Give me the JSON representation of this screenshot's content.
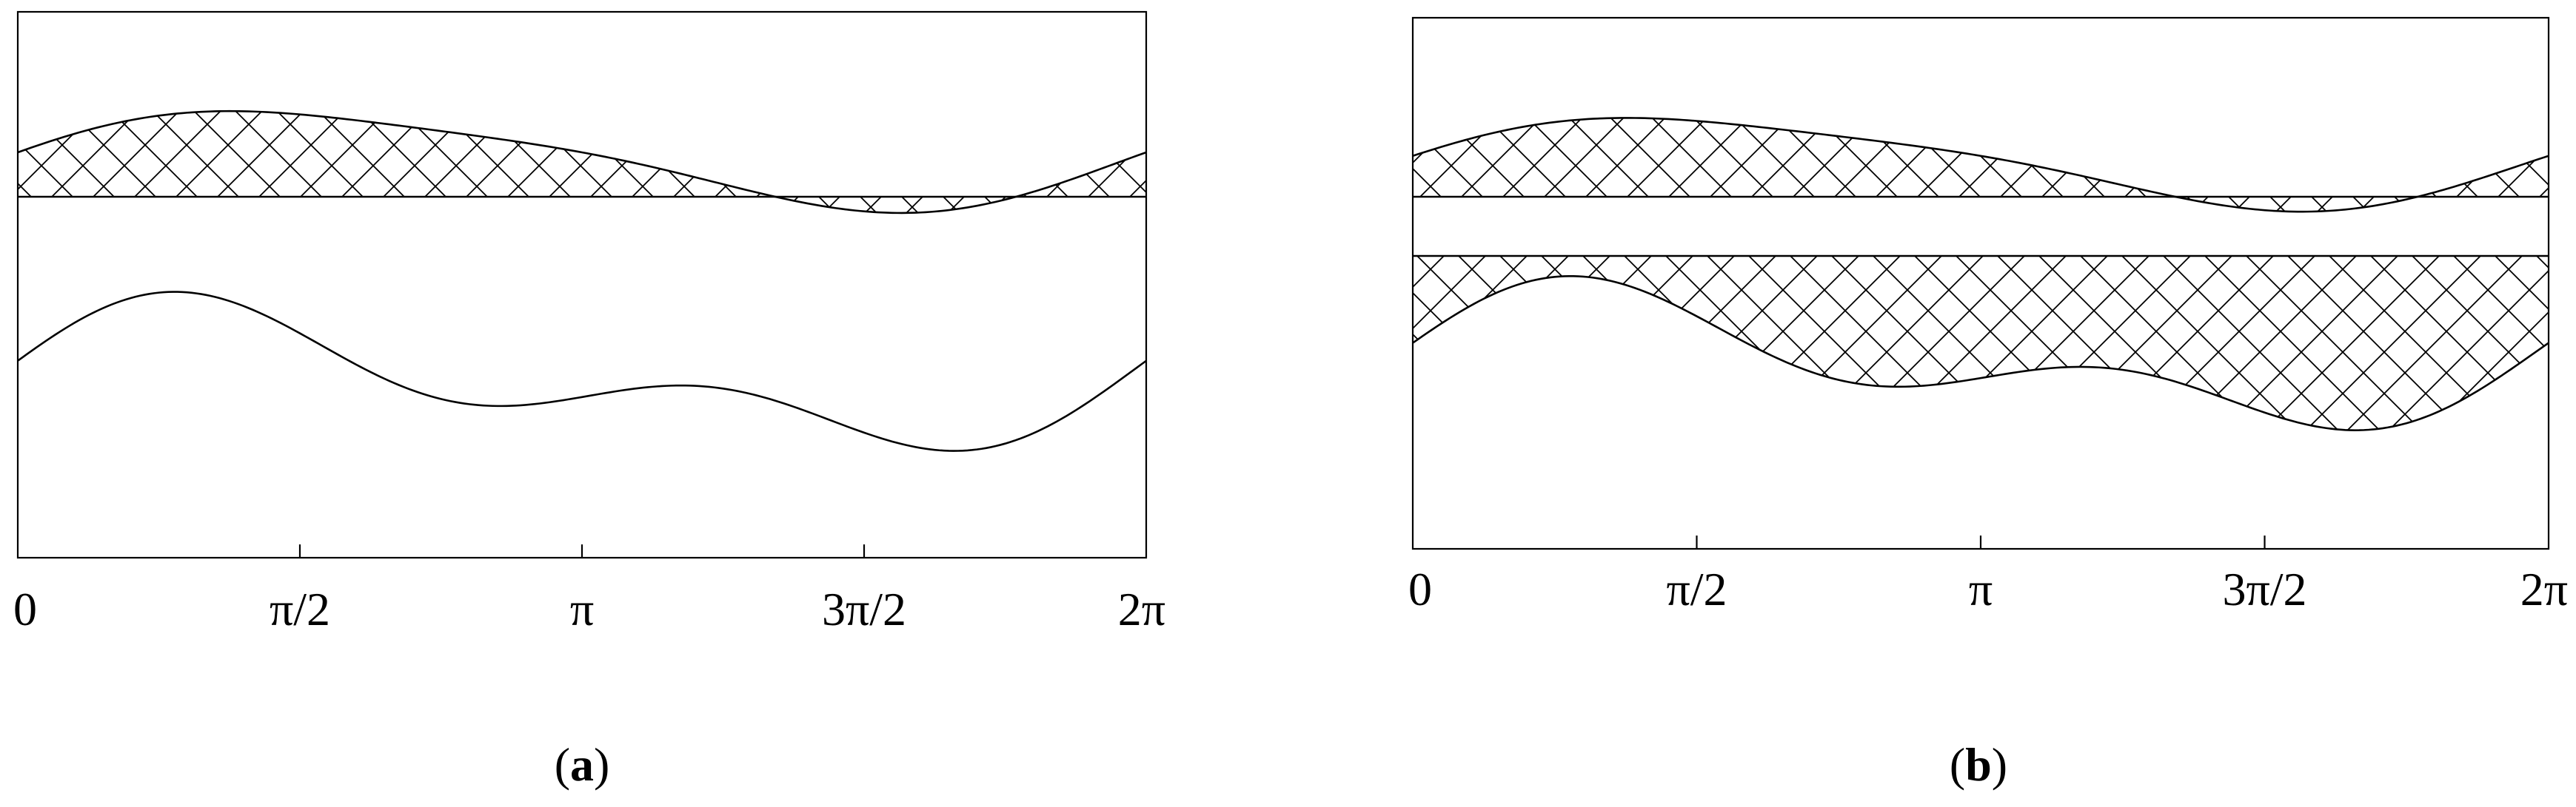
{
  "panels": [
    {
      "id": "a",
      "caption": "a",
      "x_ticks": [
        "0",
        "π/2",
        "π",
        "3π/2",
        "2π"
      ],
      "regions": [
        "upper-hatched-band",
        "lower-open-curve"
      ]
    },
    {
      "id": "b",
      "caption": "b",
      "x_ticks": [
        "0",
        "π/2",
        "π",
        "3π/2",
        "2π"
      ],
      "regions": [
        "upper-hatched-band",
        "lower-hatched-band"
      ]
    }
  ],
  "colors": {
    "stroke": "#000000",
    "background": "#ffffff"
  }
}
